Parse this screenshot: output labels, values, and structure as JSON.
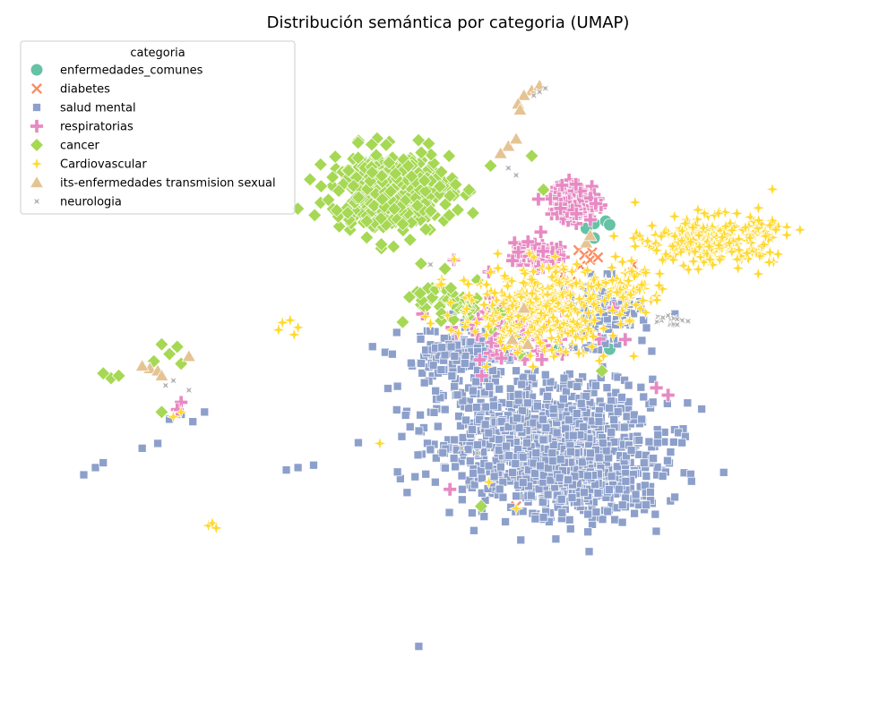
{
  "chart_data": {
    "type": "scatter",
    "title": "Distribución semántica por categoria (UMAP)",
    "xlabel": "",
    "ylabel": "",
    "axes_visible": false,
    "grid": false,
    "legend": {
      "title": "categoria",
      "placement": "top-left"
    },
    "series": [
      {
        "name": "enfermedades_comunes",
        "color": "#66c2a5",
        "marker": "circle",
        "points": [
          [
            4.6,
            14.1
          ],
          [
            4.9,
            14.2
          ],
          [
            5.0,
            14.05
          ],
          [
            4.4,
            13.9
          ],
          [
            3.7,
            8.9
          ],
          [
            5.0,
            8.9
          ],
          [
            4.6,
            13.5
          ]
        ]
      },
      {
        "name": "diabetes",
        "color": "#fc8d62",
        "marker": "x",
        "points": [
          [
            4.2,
            13.0
          ],
          [
            4.35,
            12.8
          ],
          [
            4.55,
            12.9
          ],
          [
            4.5,
            12.6
          ],
          [
            4.25,
            12.35
          ],
          [
            4.7,
            12.7
          ],
          [
            4.0,
            11.7
          ],
          [
            3.7,
            12.2
          ],
          [
            5.6,
            12.4
          ],
          [
            3.9,
            9.7
          ],
          [
            4.1,
            9.6
          ],
          [
            3.8,
            12.0
          ],
          [
            4.7,
            10.1
          ],
          [
            2.6,
            2.4
          ]
        ]
      },
      {
        "name": "salud mental",
        "color": "#8da0cb",
        "marker": "square",
        "clusters": [
          {
            "center": [
              3.2,
              5.2
            ],
            "spread": [
              2.6,
              2.3
            ],
            "count": 900
          },
          {
            "center": [
              4.4,
              3.5
            ],
            "spread": [
              1.8,
              1.6
            ],
            "count": 350
          },
          {
            "center": [
              1.2,
              8.5
            ],
            "spread": [
              1.4,
              1.2
            ],
            "count": 150
          },
          {
            "center": [
              4.9,
              10.3
            ],
            "spread": [
              0.9,
              1.3
            ],
            "count": 80
          }
        ],
        "points": [
          [
            -6.3,
            6.0
          ],
          [
            -6.0,
            6.2
          ],
          [
            -5.4,
            6.3
          ],
          [
            -5.7,
            5.9
          ],
          [
            -7.0,
            4.8
          ],
          [
            -6.6,
            5.0
          ],
          [
            -8.5,
            3.7
          ],
          [
            -8.2,
            4.0
          ],
          [
            -8.0,
            4.2
          ],
          [
            -3.3,
            3.9
          ],
          [
            -3.0,
            4.0
          ],
          [
            -2.6,
            4.1
          ],
          [
            0.1,
            -3.4
          ]
        ]
      },
      {
        "name": "respiratorias",
        "color": "#e78ac3",
        "marker": "plus",
        "clusters": [
          {
            "center": [
              4.1,
              15.0
            ],
            "spread": [
              0.55,
              0.75
            ],
            "count": 110
          },
          {
            "center": [
              3.1,
              12.9
            ],
            "spread": [
              0.6,
              0.6
            ],
            "count": 45
          },
          {
            "center": [
              2.7,
              9.5
            ],
            "spread": [
              1.5,
              1.3
            ],
            "count": 55
          }
        ],
        "points": [
          [
            -6.0,
            6.7
          ],
          [
            -6.1,
            6.4
          ],
          [
            1.0,
            12.6
          ],
          [
            1.9,
            12.1
          ],
          [
            5.4,
            9.3
          ],
          [
            5.1,
            10.6
          ],
          [
            6.5,
            7.0
          ],
          [
            6.2,
            7.3
          ],
          [
            0.9,
            3.1
          ]
        ]
      },
      {
        "name": "cancer",
        "color": "#a6d854",
        "marker": "diamond",
        "clusters": [
          {
            "center": [
              -0.6,
              15.5
            ],
            "spread": [
              1.4,
              1.5
            ],
            "count": 420
          },
          {
            "center": [
              1.2,
              10.8
            ],
            "spread": [
              1.2,
              1.0
            ],
            "count": 45
          }
        ],
        "points": [
          [
            -6.5,
            9.1
          ],
          [
            -6.1,
            9.0
          ],
          [
            -6.3,
            8.7
          ],
          [
            -6.7,
            8.4
          ],
          [
            -6.0,
            8.3
          ],
          [
            -7.8,
            7.7
          ],
          [
            -7.6,
            7.8
          ],
          [
            -8.0,
            7.9
          ],
          [
            -6.5,
            6.3
          ],
          [
            2.4,
            9.9
          ],
          [
            2.7,
            8.7
          ],
          [
            3.3,
            15.5
          ],
          [
            3.0,
            16.9
          ],
          [
            7.8,
            13.8
          ],
          [
            4.8,
            8.0
          ],
          [
            1.7,
            2.4
          ]
        ]
      },
      {
        "name": "Cardiovascular",
        "color": "#ffd92f",
        "marker": "star",
        "clusters": [
          {
            "center": [
              7.6,
              13.4
            ],
            "spread": [
              1.5,
              0.9
            ],
            "count": 260
          },
          {
            "center": [
              3.2,
              10.6
            ],
            "spread": [
              1.9,
              1.6
            ],
            "count": 330
          },
          {
            "center": [
              5.6,
              11.6
            ],
            "spread": [
              0.7,
              0.9
            ],
            "count": 50
          }
        ],
        "points": [
          [
            -3.4,
            10.0
          ],
          [
            -3.2,
            10.1
          ],
          [
            -3.0,
            9.8
          ],
          [
            -3.5,
            9.7
          ],
          [
            -3.1,
            9.5
          ],
          [
            -6.0,
            6.3
          ],
          [
            -6.2,
            6.1
          ],
          [
            -5.3,
            1.6
          ],
          [
            -5.2,
            1.7
          ],
          [
            -5.1,
            1.5
          ],
          [
            -0.9,
            5.0
          ],
          [
            1.9,
            3.4
          ],
          [
            2.6,
            2.3
          ]
        ]
      },
      {
        "name": "its-enfermedades transmision sexual",
        "color": "#e5c494",
        "marker": "triangle",
        "points": [
          [
            3.0,
            19.6
          ],
          [
            3.2,
            19.8
          ],
          [
            2.8,
            19.4
          ],
          [
            2.65,
            19.05
          ],
          [
            2.7,
            18.8
          ],
          [
            2.4,
            17.3
          ],
          [
            2.6,
            17.6
          ],
          [
            2.2,
            17.0
          ],
          [
            4.4,
            13.3
          ],
          [
            4.5,
            13.6
          ],
          [
            -6.8,
            8.1
          ],
          [
            -7.0,
            8.2
          ],
          [
            -6.6,
            8.0
          ],
          [
            -6.5,
            7.8
          ],
          [
            -5.8,
            8.6
          ],
          [
            2.8,
            10.6
          ],
          [
            2.9,
            9.1
          ],
          [
            2.5,
            9.3
          ]
        ]
      },
      {
        "name": "neurologia",
        "color": "#b3b3b3",
        "marker": "star4",
        "clusters": [
          {
            "center": [
              6.6,
              10.1
            ],
            "spread": [
              0.4,
              0.25
            ],
            "count": 16
          }
        ],
        "points": [
          [
            3.2,
            19.55
          ],
          [
            3.35,
            19.7
          ],
          [
            3.05,
            19.4
          ],
          [
            2.6,
            16.1
          ],
          [
            2.4,
            16.4
          ],
          [
            -6.4,
            7.4
          ],
          [
            -6.2,
            7.6
          ],
          [
            -5.8,
            7.2
          ],
          [
            1.6,
            4.6
          ],
          [
            1.2,
            4.8
          ],
          [
            0.4,
            12.4
          ],
          [
            4.0,
            9.0
          ]
        ]
      }
    ],
    "xlim": [
      -9.5,
      11.2
    ],
    "ylim": [
      -4.8,
      21.5
    ]
  }
}
